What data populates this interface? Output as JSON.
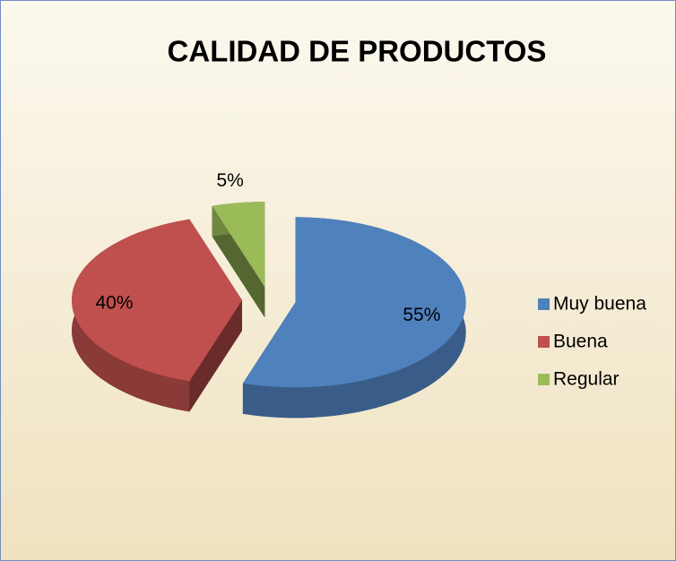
{
  "chart_data": {
    "type": "pie",
    "title": "CALIDAD DE PRODUCTOS",
    "categories": [
      "Muy buena",
      "Buena",
      "Regular"
    ],
    "values": [
      55,
      40,
      5
    ],
    "value_labels": [
      "55%",
      "40%",
      "5%"
    ],
    "colors": [
      "#4f81bd",
      "#c0504d",
      "#9bbb59"
    ],
    "legend": "right"
  }
}
